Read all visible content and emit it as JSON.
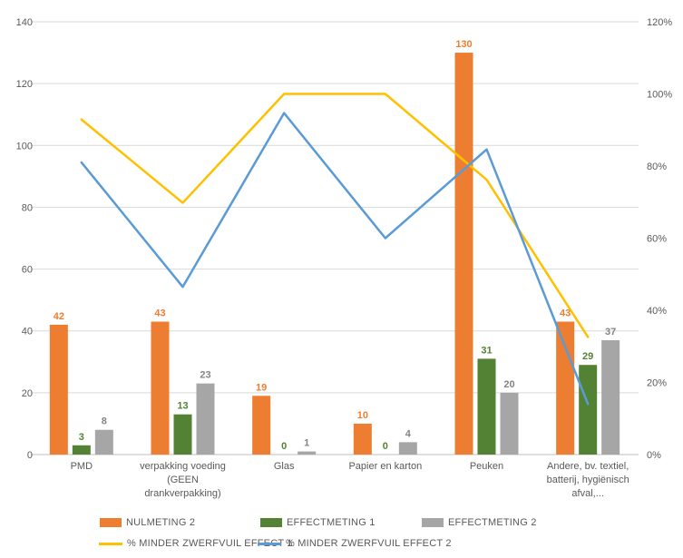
{
  "chart_data": {
    "type": "combo-bar-line",
    "title": "",
    "categories": [
      "PMD",
      "verpakking voeding (GEEN drankverpakking)",
      "Glas",
      "Papier en karton",
      "Peuken",
      "Andere, bv. textiel, batterij, hygiënisch afval,..."
    ],
    "category_lines": [
      [
        "PMD"
      ],
      [
        "verpakking voeding",
        "(GEEN",
        "drankverpakking)"
      ],
      [
        "Glas"
      ],
      [
        "Papier en karton"
      ],
      [
        "Peuken"
      ],
      [
        "Andere, bv. textiel,",
        "batterij, hygiënisch",
        "afval,..."
      ]
    ],
    "left_axis": {
      "min": 0,
      "max": 140,
      "step": 20,
      "ticks": [
        "0",
        "20",
        "40",
        "60",
        "80",
        "100",
        "120",
        "140"
      ]
    },
    "right_axis": {
      "min": 0,
      "max": 120,
      "step": 20,
      "unit": "%",
      "ticks": [
        "0%",
        "20%",
        "40%",
        "60%",
        "80%",
        "100%",
        "120%"
      ]
    },
    "bar_series": [
      {
        "name": "NULMETING 2",
        "color": "#ED7D31",
        "label_color": "#ED7D31",
        "values": [
          42,
          43,
          19,
          10,
          130,
          43
        ]
      },
      {
        "name": "EFFECTMETING 1",
        "color": "#548235",
        "label_color": "#548235",
        "values": [
          3,
          13,
          0,
          0,
          31,
          29
        ]
      },
      {
        "name": "EFFECTMETING 2",
        "color": "#A6A6A6",
        "label_color": "#848484",
        "values": [
          8,
          23,
          1,
          4,
          20,
          37
        ]
      }
    ],
    "line_series": [
      {
        "name": "% MINDER ZWERFVUIL EFFECT 1",
        "color": "#FFC000",
        "values_pct": [
          92.9,
          69.8,
          100.0,
          100.0,
          76.2,
          32.6
        ]
      },
      {
        "name": "% MINDER ZWERFVUIL EFFECT 2",
        "color": "#5B9BD5",
        "values_pct": [
          81.0,
          46.5,
          94.7,
          60.0,
          84.6,
          14.0
        ]
      }
    ],
    "styles": {
      "gridline_color": "#D9D9D9",
      "axis_line_color": "#BFBFBF",
      "tick_label_color": "#595959",
      "grid": "horizontal-only",
      "legend_position": "bottom"
    }
  }
}
